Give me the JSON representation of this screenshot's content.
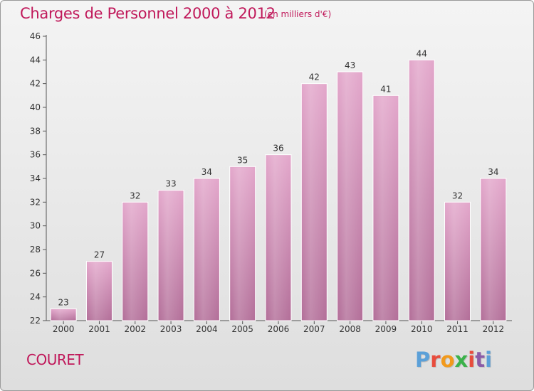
{
  "header": {
    "title": "Charges de Personnel 2000 à 2012",
    "subtitle": "(en milliers d'€)"
  },
  "footer": {
    "commune": "COURET",
    "logo_text": "Proxiti"
  },
  "colors": {
    "title": "#c0185a",
    "bar_top": "#e3a7cb",
    "bar_bottom": "#b36f99",
    "logo": [
      "#5ba0d8",
      "#e84c3d",
      "#f29a1c",
      "#3bb24a",
      "#e84c3d",
      "#8b5ba8",
      "#5ba0d8"
    ]
  },
  "chart_data": {
    "type": "bar",
    "title": "Charges de Personnel 2000 à 2012",
    "subtitle": "(en milliers d'€)",
    "categories": [
      "2000",
      "2001",
      "2002",
      "2003",
      "2004",
      "2005",
      "2006",
      "2007",
      "2008",
      "2009",
      "2010",
      "2011",
      "2012"
    ],
    "values": [
      23,
      27,
      32,
      33,
      34,
      35,
      36,
      42,
      43,
      41,
      44,
      32,
      34
    ],
    "data_labels": [
      "23",
      "27",
      "32",
      "33",
      "34",
      "35",
      "36",
      "42",
      "43",
      "41",
      "44",
      "32",
      "34"
    ],
    "ylim": [
      22,
      46
    ],
    "yticks": [
      "22",
      "24",
      "26",
      "28",
      "30",
      "32",
      "34",
      "36",
      "38",
      "40",
      "42",
      "44",
      "46"
    ],
    "grid": false
  }
}
